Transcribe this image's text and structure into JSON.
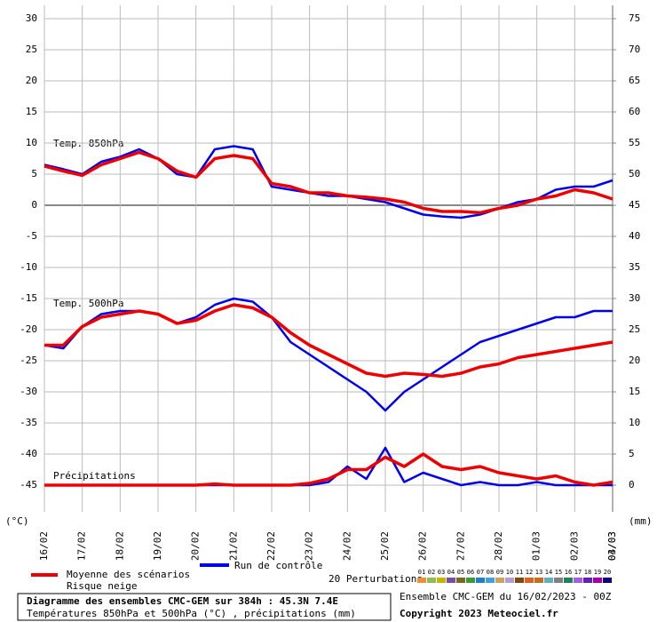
{
  "chart_data": {
    "type": "line",
    "title": "Diagramme des ensembles CMC-GEM sur 384h : 45.3N 7.4E",
    "subtitle": "Températures 850hPa et 500hPa (°C) , précipitations (mm)",
    "run_label": "Ensemble CMC-GEM du 16/02/2023 - 00Z",
    "copyright": "Copyright 2023 Meteociel.fr",
    "y_label": "(°C)",
    "y2_label": "(mm)",
    "annotations": [
      "Temp. 850hPa",
      "Temp. 500hPa",
      "Précipitations"
    ],
    "snow_label": "Risque neige",
    "grid": true,
    "xlim": [
      0,
      15
    ],
    "xticks": [
      {
        "value": 0,
        "label": "16/02"
      },
      {
        "value": 1,
        "label": "17/02"
      },
      {
        "value": 2,
        "label": "18/02"
      },
      {
        "value": 3,
        "label": "19/02"
      },
      {
        "value": 4,
        "label": "20/02"
      },
      {
        "value": 5,
        "label": "21/02"
      },
      {
        "value": 6,
        "label": "22/02"
      },
      {
        "value": 7,
        "label": "23/02"
      },
      {
        "value": 8,
        "label": "24/02"
      },
      {
        "value": 9,
        "label": "25/02"
      },
      {
        "value": 10,
        "label": "26/02"
      },
      {
        "value": 11,
        "label": "27/02"
      },
      {
        "value": 12,
        "label": "28/02"
      },
      {
        "value": 13,
        "label": "01/03"
      },
      {
        "value": 14,
        "label": "02/03"
      },
      {
        "value": 15,
        "label": "03/03"
      }
    ],
    "xticks_end": {
      "value": 15,
      "label": "04/03"
    },
    "ylim": [
      -45,
      30
    ],
    "yticks": [
      30,
      25,
      20,
      15,
      10,
      5,
      0,
      -5,
      -10,
      -15,
      -20,
      -25,
      -30,
      -35,
      -40,
      -45
    ],
    "y2lim": [
      0,
      75
    ],
    "y2ticks": [
      75,
      70,
      65,
      60,
      55,
      50,
      45,
      40,
      35,
      30,
      25,
      20,
      15,
      10,
      5,
      0
    ],
    "x": [
      0,
      0.5,
      1,
      1.5,
      2,
      2.5,
      3,
      3.5,
      4,
      4.5,
      5,
      5.5,
      6,
      6.5,
      7,
      7.5,
      8,
      8.5,
      9,
      9.5,
      10,
      10.5,
      11,
      11.5,
      12,
      12.5,
      13,
      13.5,
      14,
      14.5,
      15
    ],
    "series": [
      {
        "name": "Run de contrôle",
        "color": "#0000ee",
        "t850": [
          6.5,
          5.8,
          5,
          7,
          7.8,
          9,
          7.5,
          5,
          4.5,
          9,
          9.5,
          9,
          3,
          2.5,
          2,
          1.5,
          1.5,
          1,
          0.5,
          -0.5,
          -1.5,
          -1.8,
          -2,
          -1.5,
          -0.5,
          0.5,
          1,
          2.5,
          3,
          3,
          4
        ],
        "t500": [
          -22.5,
          -23,
          -19.5,
          -17.5,
          -17,
          -17,
          -17.5,
          -19,
          -18,
          -16,
          -15,
          -15.5,
          -18,
          -22,
          -24,
          -26,
          -28,
          -30,
          -33,
          -30,
          -28,
          -26,
          -24,
          -22,
          -21,
          -20,
          -19,
          -18,
          -18,
          -17,
          -17
        ],
        "precip": [
          0,
          0,
          0,
          0,
          0,
          0,
          0,
          0,
          0,
          0,
          0,
          0,
          0,
          0,
          0,
          0.5,
          3,
          1,
          6,
          0.5,
          2,
          1,
          0,
          0.5,
          0,
          0,
          0.5,
          0,
          0,
          0,
          0
        ]
      },
      {
        "name": "Moyenne des scénarios",
        "color": "#ee0000",
        "t850": [
          6.3,
          5.5,
          4.8,
          6.5,
          7.5,
          8.5,
          7.5,
          5.5,
          4.5,
          7.5,
          8,
          7.5,
          3.5,
          3,
          2,
          2,
          1.5,
          1.3,
          1,
          0.5,
          -0.5,
          -1,
          -1,
          -1.2,
          -0.5,
          0,
          1,
          1.5,
          2.5,
          2,
          1
        ],
        "t500": [
          -22.5,
          -22.5,
          -19.5,
          -18,
          -17.5,
          -17,
          -17.5,
          -19,
          -18.5,
          -17,
          -16,
          -16.5,
          -18,
          -20.5,
          -22.5,
          -24,
          -25.5,
          -27,
          -27.5,
          -27,
          -27.2,
          -27.5,
          -27,
          -26,
          -25.5,
          -24.5,
          -24,
          -23.5,
          -23,
          -22.5,
          -22
        ],
        "precip": [
          0,
          0,
          0,
          0,
          0,
          0,
          0,
          0,
          0,
          0.2,
          0,
          0,
          0,
          0,
          0.3,
          1,
          2.5,
          2.5,
          4.5,
          3,
          5,
          3,
          2.5,
          3,
          2,
          1.5,
          1,
          1.5,
          0.5,
          0,
          0.5
        ]
      }
    ],
    "perturbations": {
      "label": "20 Perturbations",
      "numbers": [
        "01",
        "02",
        "03",
        "04",
        "05",
        "06",
        "07",
        "08",
        "09",
        "10",
        "11",
        "12",
        "13",
        "14",
        "15",
        "16",
        "17",
        "18",
        "19",
        "20"
      ],
      "colors": [
        "#e8903c",
        "#8fbc5a",
        "#c8b400",
        "#7a4fa0",
        "#7a6a20",
        "#3c9a3c",
        "#2080c0",
        "#40a0e0",
        "#d0a060",
        "#b0a0d0",
        "#7a4a10",
        "#e06020",
        "#c07020",
        "#60b0c0",
        "#808080",
        "#208060",
        "#a060e0",
        "#6020c0",
        "#a000a0",
        "#100080"
      ]
    }
  }
}
